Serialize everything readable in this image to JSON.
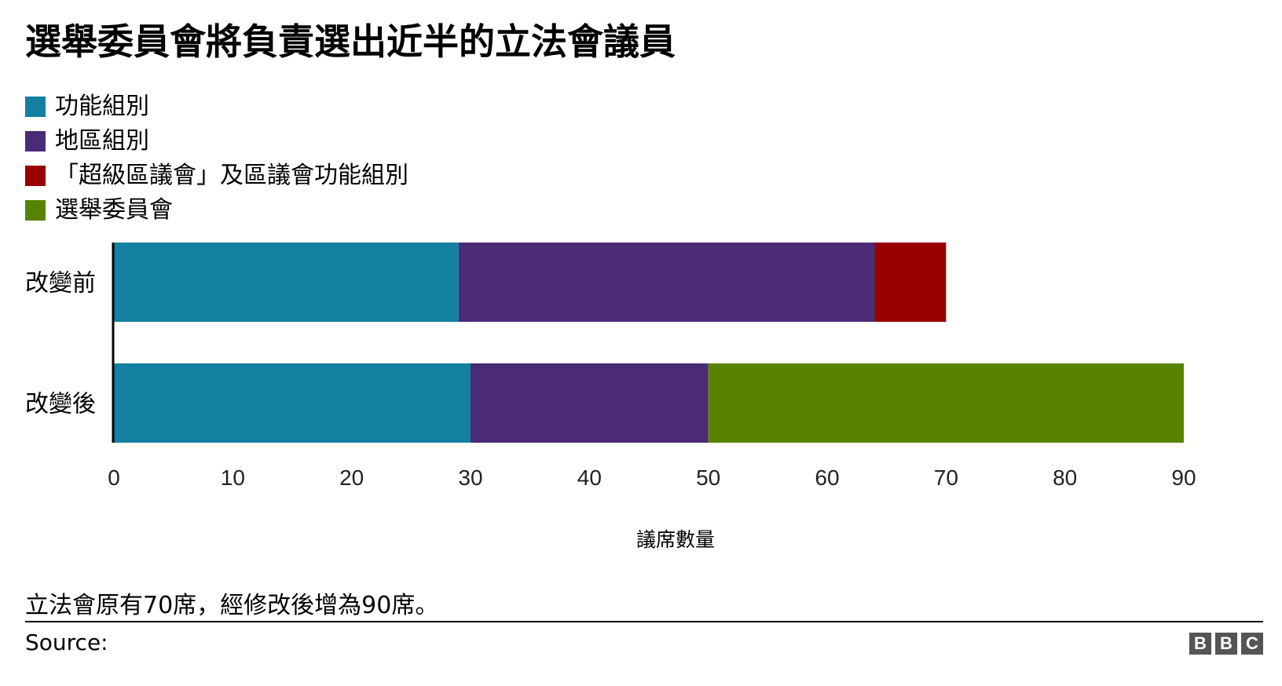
{
  "title": "選舉委員會將負責選出近半的立法會議員",
  "note": "立法會原有70席，經修改後增為90席。",
  "source_label": "Source:",
  "logo_letters": [
    "B",
    "B",
    "C"
  ],
  "chart_data": {
    "type": "bar",
    "orientation": "horizontal",
    "stacked": true,
    "title": "選舉委員會將負責選出近半的立法會議員",
    "categories": [
      "改變前",
      "改變後"
    ],
    "series": [
      {
        "name": "功能組別",
        "color": "#1380A1",
        "values": [
          29,
          30
        ]
      },
      {
        "name": "地區組別",
        "color": "#4B2A76",
        "values": [
          35,
          20
        ]
      },
      {
        "name": "「超級區議會」及區議會功能組別",
        "color": "#990000",
        "values": [
          6,
          0
        ]
      },
      {
        "name": "選舉委員會",
        "color": "#588300",
        "values": [
          0,
          40
        ]
      }
    ],
    "xlabel": "議席數量",
    "ylabel": "",
    "xlim": [
      0,
      90
    ],
    "xticks": [
      0,
      10,
      20,
      30,
      40,
      50,
      60,
      70,
      80,
      90
    ],
    "grid": false,
    "legend_position": "top-left"
  }
}
